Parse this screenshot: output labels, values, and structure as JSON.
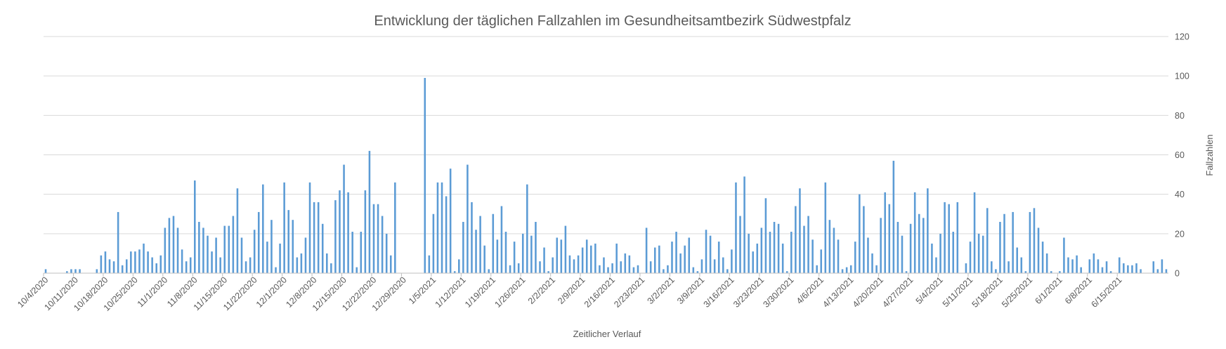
{
  "chart_data": {
    "type": "bar",
    "title": "Entwicklung der täglichen Fallzahlen im Gesundheitsamtbezirk Südwestpfalz",
    "xlabel": "Zeitlicher Verlauf",
    "ylabel": "Fallzahlen",
    "y_axis_side": "right",
    "ylim": [
      0,
      120
    ],
    "y_ticks": [
      0,
      20,
      40,
      60,
      80,
      100,
      120
    ],
    "grid": true,
    "legend": "none",
    "bar_color": "#5b9bd5",
    "x_start": "10/4/2020",
    "x_tick_labels": [
      "10/4/2020",
      "10/11/2020",
      "10/18/2020",
      "10/25/2020",
      "11/1/2020",
      "11/8/2020",
      "11/15/2020",
      "11/22/2020",
      "12/1/2020",
      "12/8/2020",
      "12/15/2020",
      "12/22/2020",
      "12/29/2020",
      "1/5/2021",
      "1/12/2021",
      "1/19/2021",
      "1/26/2021",
      "2/2/2021",
      "2/9/2021",
      "2/16/2021",
      "2/23/2021",
      "3/2/2021",
      "3/9/2021",
      "3/16/2021",
      "3/23/2021",
      "3/30/2021",
      "4/6/2021",
      "4/13/2021",
      "4/20/2021",
      "4/27/2021",
      "5/4/2021",
      "5/11/2021",
      "5/18/2021",
      "5/25/2021",
      "6/1/2021",
      "6/8/2021",
      "6/15/2021"
    ],
    "series": [
      {
        "values": [
          2,
          0,
          0,
          0,
          0,
          1,
          2,
          2,
          2,
          0,
          0,
          0,
          2,
          9,
          11,
          7,
          6,
          31,
          4,
          7,
          11,
          11,
          12,
          15,
          11,
          8,
          5,
          9,
          23,
          28,
          29,
          23,
          12,
          6,
          8,
          47,
          26,
          23,
          19,
          11,
          18,
          8,
          24,
          24,
          29,
          43,
          18,
          6,
          8,
          22,
          31,
          45,
          16,
          27,
          3,
          15,
          46,
          32,
          27,
          8,
          10,
          18,
          46,
          36,
          36,
          25,
          10,
          5,
          37,
          42,
          55,
          41,
          21,
          3,
          21,
          42,
          62,
          35,
          35,
          29,
          20,
          9,
          46,
          0,
          0,
          0,
          0,
          0,
          0,
          99,
          9,
          30,
          46,
          46,
          39,
          53,
          1,
          7,
          26,
          55,
          36,
          22,
          29,
          14,
          2,
          30,
          17,
          34,
          21,
          4,
          16,
          5,
          20,
          45,
          19,
          26,
          6,
          13,
          1,
          8,
          18,
          17,
          24,
          9,
          7,
          9,
          13,
          17,
          14,
          15,
          4,
          8,
          3,
          5,
          15,
          6,
          10,
          9,
          3,
          4,
          0,
          23,
          6,
          13,
          14,
          2,
          4,
          16,
          21,
          10,
          14,
          18,
          3,
          1,
          7,
          22,
          19,
          7,
          16,
          8,
          2,
          12,
          46,
          29,
          49,
          20,
          11,
          15,
          23,
          38,
          21,
          26,
          25,
          15,
          1,
          21,
          34,
          43,
          24,
          29,
          17,
          4,
          12,
          46,
          27,
          23,
          17,
          2,
          3,
          4,
          16,
          40,
          34,
          18,
          10,
          4,
          28,
          41,
          35,
          57,
          26,
          19,
          1,
          25,
          41,
          30,
          28,
          43,
          15,
          8,
          20,
          36,
          35,
          21,
          36,
          0,
          5,
          16,
          41,
          20,
          19,
          33,
          6,
          2,
          26,
          30,
          6,
          31,
          13,
          8,
          1,
          31,
          33,
          23,
          16,
          10,
          1,
          0,
          1,
          18,
          8,
          7,
          9,
          3,
          0,
          7,
          10,
          7,
          3,
          6,
          1,
          0,
          8,
          5,
          4,
          4,
          5,
          2,
          0,
          0,
          6,
          2,
          7,
          2
        ]
      }
    ]
  }
}
